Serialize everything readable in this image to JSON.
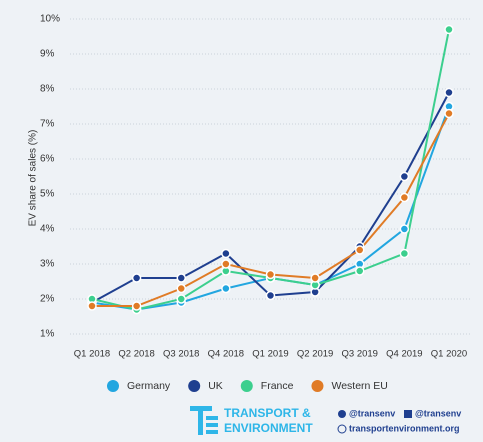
{
  "chart_data": {
    "type": "line",
    "y_label": "EV share of sales (%)",
    "categories": [
      "Q1 2018",
      "Q2 2018",
      "Q3 2018",
      "Q4 2018",
      "Q1 2019",
      "Q2 2019",
      "Q3 2019",
      "Q4 2019",
      "Q1 2020"
    ],
    "series": [
      {
        "name": "Germany",
        "color": "#22a6e0",
        "values": [
          1.9,
          1.7,
          1.9,
          2.3,
          2.6,
          2.4,
          3.0,
          4.0,
          7.5
        ]
      },
      {
        "name": "UK",
        "color": "#1f3f8f",
        "values": [
          1.9,
          2.6,
          2.6,
          3.3,
          2.1,
          2.2,
          3.5,
          5.5,
          7.9
        ]
      },
      {
        "name": "France",
        "color": "#3ccf8e",
        "values": [
          2.0,
          1.7,
          2.0,
          2.8,
          2.6,
          2.4,
          2.8,
          3.3,
          9.7
        ]
      },
      {
        "name": "Western EU",
        "color": "#e07b26",
        "values": [
          1.8,
          1.8,
          2.3,
          3.0,
          2.7,
          2.6,
          3.4,
          4.9,
          7.3
        ]
      }
    ],
    "ylim": [
      0.7,
      10.2
    ],
    "yticks": [
      {
        "value": 1,
        "label": "1%"
      },
      {
        "value": 2,
        "label": "2%"
      },
      {
        "value": 3,
        "label": "3%"
      },
      {
        "value": 4,
        "label": "4%"
      },
      {
        "value": 5,
        "label": "5%"
      },
      {
        "value": 6,
        "label": "6%"
      },
      {
        "value": 7,
        "label": "7%"
      },
      {
        "value": 8,
        "label": "8%"
      },
      {
        "value": 9,
        "label": "9%"
      },
      {
        "value": 10,
        "label": "10%"
      }
    ],
    "grid": true,
    "legend": "bottom"
  },
  "footer": {
    "logo_line1": "TRANSPORT &",
    "logo_line2": "ENVIRONMENT",
    "twitter": "@transenv",
    "facebook": "@transenv",
    "website": "transportenvironment.org"
  }
}
